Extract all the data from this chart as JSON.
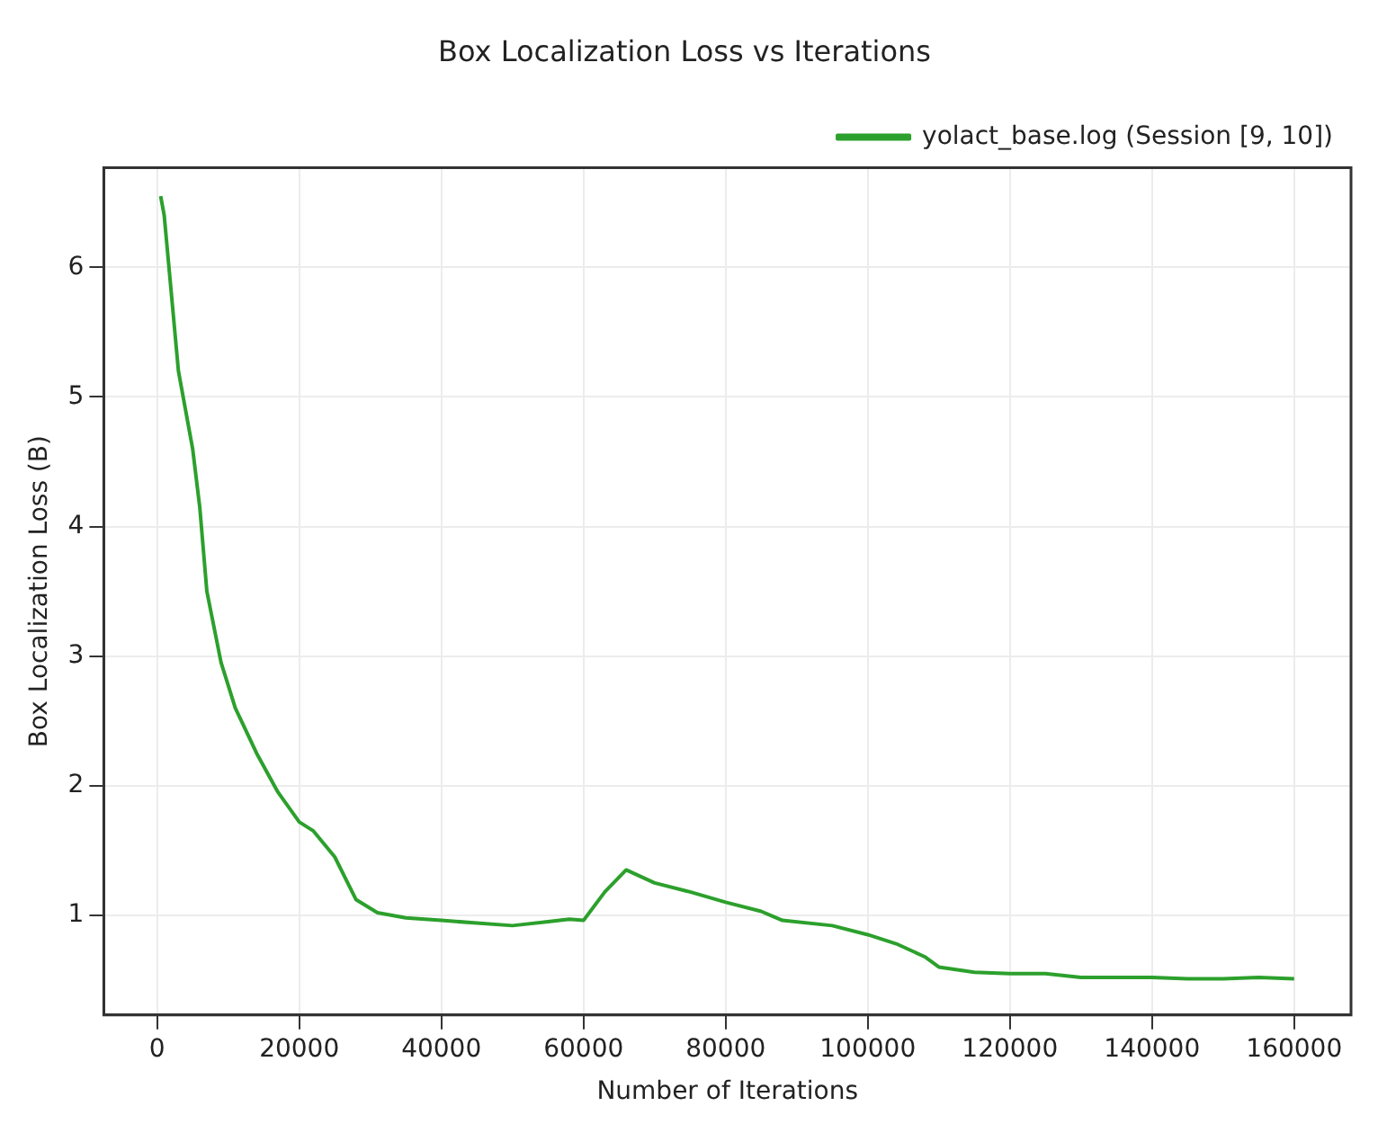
{
  "chart_data": {
    "type": "line",
    "title": "Box Localization Loss vs Iterations",
    "xlabel": "Number of Iterations",
    "ylabel": "Box Localization Loss (B)",
    "x": [
      500,
      1000,
      2000,
      3000,
      5000,
      6000,
      7000,
      9000,
      11000,
      14000,
      17000,
      20000,
      22000,
      25000,
      28000,
      31000,
      35000,
      40000,
      45000,
      50000,
      55000,
      58000,
      60000,
      63000,
      66000,
      70000,
      75000,
      80000,
      85000,
      88000,
      95000,
      100000,
      104000,
      108000,
      110000,
      115000,
      120000,
      125000,
      130000,
      135000,
      140000,
      145000,
      150000,
      155000,
      160000
    ],
    "series": [
      {
        "name": "yolact_base.log (Session [9, 10])",
        "color": "#2ca02c",
        "values": [
          6.55,
          6.4,
          5.8,
          5.2,
          4.6,
          4.15,
          3.5,
          2.95,
          2.6,
          2.25,
          1.95,
          1.72,
          1.65,
          1.45,
          1.12,
          1.02,
          0.98,
          0.96,
          0.94,
          0.92,
          0.95,
          0.97,
          0.96,
          1.18,
          1.35,
          1.25,
          1.18,
          1.1,
          1.03,
          0.96,
          0.92,
          0.85,
          0.78,
          0.68,
          0.6,
          0.56,
          0.55,
          0.55,
          0.52,
          0.52,
          0.52,
          0.51,
          0.51,
          0.52,
          0.51
        ]
      }
    ],
    "xlim": [
      -7500,
      168000
    ],
    "xticks": [
      0,
      20000,
      40000,
      60000,
      80000,
      100000,
      120000,
      140000,
      160000
    ],
    "ylim": [
      0.23,
      6.77
    ],
    "yticks": [
      1,
      2,
      3,
      4,
      5,
      6
    ],
    "grid": true,
    "legend": "top right",
    "marker": "none",
    "line_style": "solid"
  }
}
